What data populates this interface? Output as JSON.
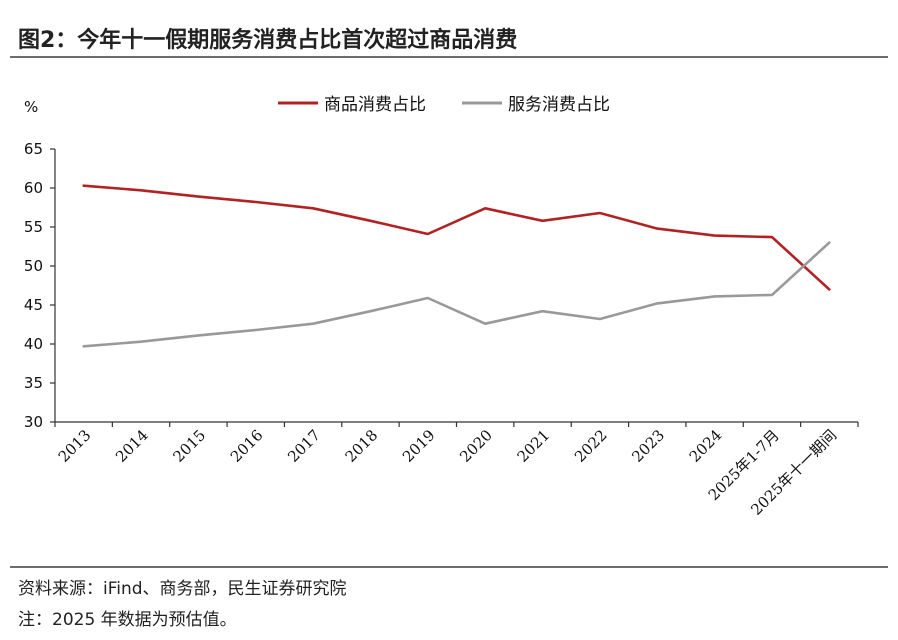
{
  "title": "图2：今年十一假期服务消费占比首次超过商品消费",
  "source": "资料来源：iFind、商务部，民生证券研究院",
  "note": "注：2025 年数据为预估值。",
  "colors": {
    "goods": "#b22222",
    "services": "#999999",
    "axis": "#333333"
  },
  "chart_data": {
    "type": "line",
    "title": "今年十一假期服务消费占比首次超过商品消费",
    "ylabel": "%",
    "xlabel": "",
    "ylim": [
      30,
      65
    ],
    "yticks": [
      30,
      35,
      40,
      45,
      50,
      55,
      60,
      65
    ],
    "grid": false,
    "legend": "top",
    "categories": [
      "2013",
      "2014",
      "2015",
      "2016",
      "2017",
      "2018",
      "2019",
      "2020",
      "2021",
      "2022",
      "2023",
      "2024",
      "2025年1-7月",
      "2025年十一期间"
    ],
    "series": [
      {
        "name": "商品消费占比",
        "values": [
          60.3,
          59.7,
          58.9,
          58.2,
          57.4,
          55.8,
          54.1,
          57.4,
          55.8,
          56.8,
          54.8,
          53.9,
          53.7,
          47.0
        ]
      },
      {
        "name": "服务消费占比",
        "values": [
          39.7,
          40.3,
          41.1,
          41.8,
          42.6,
          44.2,
          45.9,
          42.6,
          44.2,
          43.2,
          45.2,
          46.1,
          46.3,
          53.0
        ]
      }
    ]
  }
}
